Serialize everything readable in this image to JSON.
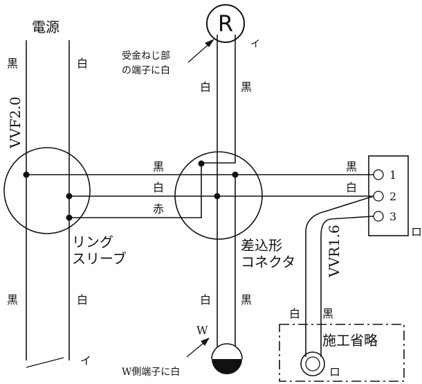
{
  "power": {
    "title": "電源",
    "black": "黒",
    "white": "白",
    "cable": "VVF2.0",
    "bottom_black": "黒",
    "bottom_white": "白",
    "bottom_i": "イ"
  },
  "receptacle": {
    "symbol": "R",
    "terminal_i": "イ",
    "note_line1": "受金ねじ部",
    "note_line2": "の端子に白",
    "wire_white": "白",
    "wire_black": "黒"
  },
  "sleeve": {
    "line1": "リング",
    "line2": "スリーブ"
  },
  "connector": {
    "line1": "差込形",
    "line2": "コネクタ",
    "bottom_white": "白",
    "bottom_black": "黒"
  },
  "center_wires": {
    "black": "黒",
    "white": "白",
    "red": "赤"
  },
  "terminal": {
    "black": "黒",
    "white": "白",
    "n1": "1",
    "n2": "2",
    "n3": "3",
    "ro": "ロ"
  },
  "vvr": {
    "cable": "VVR1.6",
    "white": "白",
    "black": "黒"
  },
  "omitted": {
    "label": "施工省略",
    "ro": "ロ"
  },
  "outlet": {
    "w_mark": "W",
    "note": "W側端子に白"
  }
}
